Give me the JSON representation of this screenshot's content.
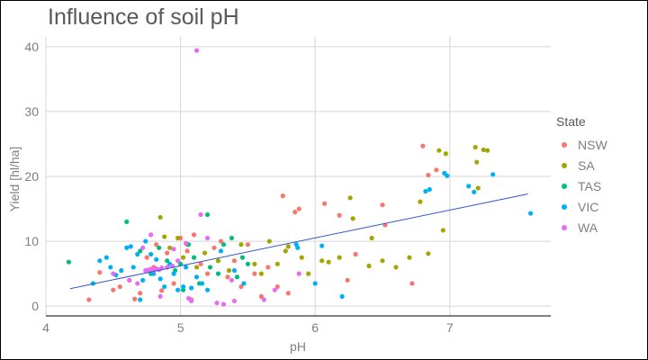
{
  "chart_data": {
    "type": "scatter",
    "title": "Influence of soil pH",
    "xlabel": "pH",
    "ylabel": "Yield [hl/ha]",
    "xlim": [
      4.0,
      7.75
    ],
    "ylim": [
      -1.5,
      41.5
    ],
    "xticks": [
      4,
      5,
      6,
      7
    ],
    "yticks": [
      0,
      10,
      20,
      30,
      40
    ],
    "grid": true,
    "legend_title": "State",
    "legend_position": "right",
    "trend_line": {
      "x": [
        4.18,
        7.58
      ],
      "y": [
        2.7,
        17.3
      ],
      "color": "#3355cc"
    },
    "series": [
      {
        "name": "NSW",
        "color": "#f8766d",
        "points": [
          [
            4.32,
            1.0
          ],
          [
            4.4,
            5.2
          ],
          [
            4.5,
            2.5
          ],
          [
            4.55,
            3.0
          ],
          [
            4.62,
            4.0
          ],
          [
            4.66,
            1.1
          ],
          [
            4.7,
            2.0
          ],
          [
            4.75,
            7.5
          ],
          [
            4.8,
            6.0
          ],
          [
            4.82,
            9.5
          ],
          [
            4.86,
            2.4
          ],
          [
            4.9,
            8.2
          ],
          [
            4.95,
            3.5
          ],
          [
            5.0,
            10.5
          ],
          [
            5.05,
            8.5
          ],
          [
            5.08,
            1.0
          ],
          [
            5.1,
            11.0
          ],
          [
            5.15,
            6.5
          ],
          [
            5.2,
            5.0
          ],
          [
            5.25,
            9.0
          ],
          [
            5.3,
            10.0
          ],
          [
            5.35,
            4.5
          ],
          [
            5.4,
            7.0
          ],
          [
            5.45,
            3.0
          ],
          [
            5.5,
            9.5
          ],
          [
            5.55,
            5.0
          ],
          [
            5.6,
            1.5
          ],
          [
            5.65,
            6.0
          ],
          [
            5.72,
            3.0
          ],
          [
            5.76,
            17.0
          ],
          [
            5.8,
            2.0
          ],
          [
            5.85,
            14.5
          ],
          [
            5.88,
            15.0
          ],
          [
            6.07,
            15.8
          ],
          [
            6.18,
            14.0
          ],
          [
            6.24,
            4.0
          ],
          [
            6.3,
            8.0
          ],
          [
            6.5,
            15.6
          ],
          [
            6.52,
            12.5
          ],
          [
            6.72,
            3.5
          ],
          [
            6.8,
            24.7
          ],
          [
            6.84,
            20.2
          ],
          [
            6.9,
            21.0
          ]
        ]
      },
      {
        "name": "SA",
        "color": "#a3a500",
        "points": [
          [
            4.85,
            13.7
          ],
          [
            4.88,
            10.7
          ],
          [
            4.92,
            9.0
          ],
          [
            4.98,
            10.5
          ],
          [
            5.02,
            7.5
          ],
          [
            5.05,
            9.5
          ],
          [
            5.12,
            6.0
          ],
          [
            5.18,
            8.2
          ],
          [
            5.28,
            7.0
          ],
          [
            5.36,
            5.5
          ],
          [
            5.45,
            9.5
          ],
          [
            5.55,
            6.5
          ],
          [
            5.6,
            5.0
          ],
          [
            5.66,
            10.0
          ],
          [
            5.72,
            6.5
          ],
          [
            5.78,
            8.5
          ],
          [
            5.8,
            9.2
          ],
          [
            5.9,
            7.5
          ],
          [
            5.95,
            5.0
          ],
          [
            6.05,
            7.0
          ],
          [
            6.1,
            6.8
          ],
          [
            6.18,
            7.5
          ],
          [
            6.26,
            16.7
          ],
          [
            6.28,
            13.5
          ],
          [
            6.4,
            6.2
          ],
          [
            6.42,
            10.5
          ],
          [
            6.5,
            7.0
          ],
          [
            6.6,
            6.0
          ],
          [
            6.7,
            7.5
          ],
          [
            6.78,
            16.1
          ],
          [
            6.84,
            8.1
          ],
          [
            6.92,
            24.0
          ],
          [
            6.95,
            11.7
          ],
          [
            6.97,
            23.5
          ],
          [
            7.19,
            24.5
          ],
          [
            7.2,
            22.2
          ],
          [
            7.21,
            18.2
          ],
          [
            7.25,
            24.1
          ],
          [
            7.28,
            24.0
          ]
        ]
      },
      {
        "name": "TAS",
        "color": "#00bf7d",
        "points": [
          [
            4.17,
            6.8
          ],
          [
            4.6,
            13.0
          ],
          [
            4.7,
            8.5
          ],
          [
            4.78,
            5.0
          ],
          [
            4.84,
            9.0
          ],
          [
            4.9,
            7.0
          ],
          [
            4.96,
            5.5
          ],
          [
            5.0,
            6.5
          ],
          [
            5.02,
            2.5
          ],
          [
            5.06,
            9.5
          ],
          [
            5.1,
            7.5
          ],
          [
            5.14,
            3.5
          ],
          [
            5.2,
            14.1
          ],
          [
            5.22,
            6.0
          ],
          [
            5.28,
            5.0
          ],
          [
            5.32,
            9.5
          ],
          [
            5.38,
            10.5
          ],
          [
            5.42,
            4.5
          ],
          [
            5.46,
            7.5
          ],
          [
            5.5,
            6.5
          ]
        ]
      },
      {
        "name": "VIC",
        "color": "#00b0f6",
        "points": [
          [
            4.35,
            3.5
          ],
          [
            4.4,
            7.0
          ],
          [
            4.45,
            7.5
          ],
          [
            4.48,
            6.0
          ],
          [
            4.52,
            4.8
          ],
          [
            4.56,
            5.5
          ],
          [
            4.6,
            9.0
          ],
          [
            4.63,
            9.2
          ],
          [
            4.65,
            6.0
          ],
          [
            4.68,
            8.0
          ],
          [
            4.7,
            1.0
          ],
          [
            4.72,
            4.0
          ],
          [
            4.74,
            10.0
          ],
          [
            4.78,
            8.0
          ],
          [
            4.8,
            5.0
          ],
          [
            4.82,
            7.2
          ],
          [
            4.85,
            4.2
          ],
          [
            4.88,
            3.0
          ],
          [
            4.92,
            6.5
          ],
          [
            4.95,
            5.0
          ],
          [
            4.98,
            2.5
          ],
          [
            5.02,
            3.0
          ],
          [
            5.04,
            6.0
          ],
          [
            5.08,
            2.8
          ],
          [
            5.12,
            4.5
          ],
          [
            5.16,
            3.5
          ],
          [
            5.2,
            2.5
          ],
          [
            5.3,
            8.5
          ],
          [
            5.4,
            5.5
          ],
          [
            5.47,
            3.5
          ],
          [
            5.86,
            9.5
          ],
          [
            5.87,
            9.0
          ],
          [
            6.05,
            9.3
          ],
          [
            6.0,
            3.5
          ],
          [
            6.2,
            1.5
          ],
          [
            6.82,
            17.7
          ],
          [
            6.85,
            18.0
          ],
          [
            6.96,
            20.5
          ],
          [
            6.98,
            20.1
          ],
          [
            7.14,
            18.5
          ],
          [
            7.18,
            17.6
          ],
          [
            7.32,
            20.3
          ],
          [
            7.6,
            14.3
          ]
        ]
      },
      {
        "name": "WA",
        "color": "#e76bf3",
        "points": [
          [
            4.5,
            5.0
          ],
          [
            4.62,
            4.0
          ],
          [
            4.68,
            3.5
          ],
          [
            4.72,
            9.0
          ],
          [
            4.74,
            5.5
          ],
          [
            4.76,
            5.6
          ],
          [
            4.78,
            5.7
          ],
          [
            4.8,
            5.5
          ],
          [
            4.82,
            5.8
          ],
          [
            4.84,
            5.6
          ],
          [
            4.86,
            5.9
          ],
          [
            4.9,
            6.0
          ],
          [
            4.94,
            6.2
          ],
          [
            4.98,
            7.0
          ],
          [
            5.04,
            9.7
          ],
          [
            5.06,
            1.2
          ],
          [
            5.08,
            0.8
          ],
          [
            5.12,
            39.4
          ],
          [
            5.15,
            14.1
          ],
          [
            5.2,
            10.5
          ],
          [
            5.27,
            0.5
          ],
          [
            5.32,
            0.3
          ],
          [
            5.38,
            4.0
          ],
          [
            5.4,
            0.8
          ],
          [
            5.62,
            1.0
          ],
          [
            5.7,
            2.5
          ],
          [
            5.88,
            5.0
          ],
          [
            4.78,
            11.0
          ],
          [
            4.95,
            8.8
          ],
          [
            4.85,
            1.5
          ]
        ]
      }
    ]
  }
}
